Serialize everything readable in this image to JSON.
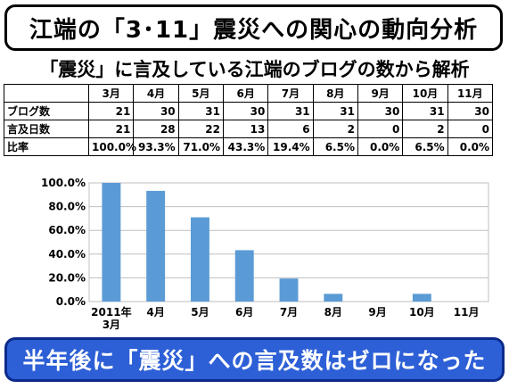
{
  "title": "江端の「3･11」震災への関心の動向分析",
  "subtitle": "「震災」に言及している江端のブログの数から解析",
  "table": {
    "months": [
      "3月",
      "4月",
      "5月",
      "6月",
      "7月",
      "8月",
      "9月",
      "10月",
      "11月"
    ],
    "rows": [
      {
        "label": "ブログ数",
        "values": [
          "21",
          "30",
          "31",
          "30",
          "31",
          "31",
          "30",
          "31",
          "30"
        ]
      },
      {
        "label": "言及日数",
        "values": [
          "21",
          "28",
          "22",
          "13",
          "6",
          "2",
          "0",
          "2",
          "0"
        ]
      },
      {
        "label": "比率",
        "values": [
          "100.0%",
          "93.3%",
          "71.0%",
          "43.3%",
          "19.4%",
          "6.5%",
          "0.0%",
          "6.5%",
          "0.0%"
        ]
      }
    ]
  },
  "chart_data": {
    "type": "bar",
    "categories": [
      "2011年 3月",
      "4月",
      "5月",
      "6月",
      "7月",
      "8月",
      "9月",
      "10月",
      "11月"
    ],
    "values": [
      100.0,
      93.3,
      71.0,
      43.3,
      19.4,
      6.5,
      0.0,
      6.5,
      0.0
    ],
    "ylim": [
      0,
      100
    ],
    "yticks": [
      "0.0%",
      "20.0%",
      "40.0%",
      "60.0%",
      "80.0%",
      "100.0%"
    ],
    "bar_color": "#5b9bd5",
    "grid": true
  },
  "banner": "半年後に「震災」への言及数はゼロになった",
  "colors": {
    "banner_bg": "#2d5fd6",
    "banner_border": "#0c2a8a"
  }
}
